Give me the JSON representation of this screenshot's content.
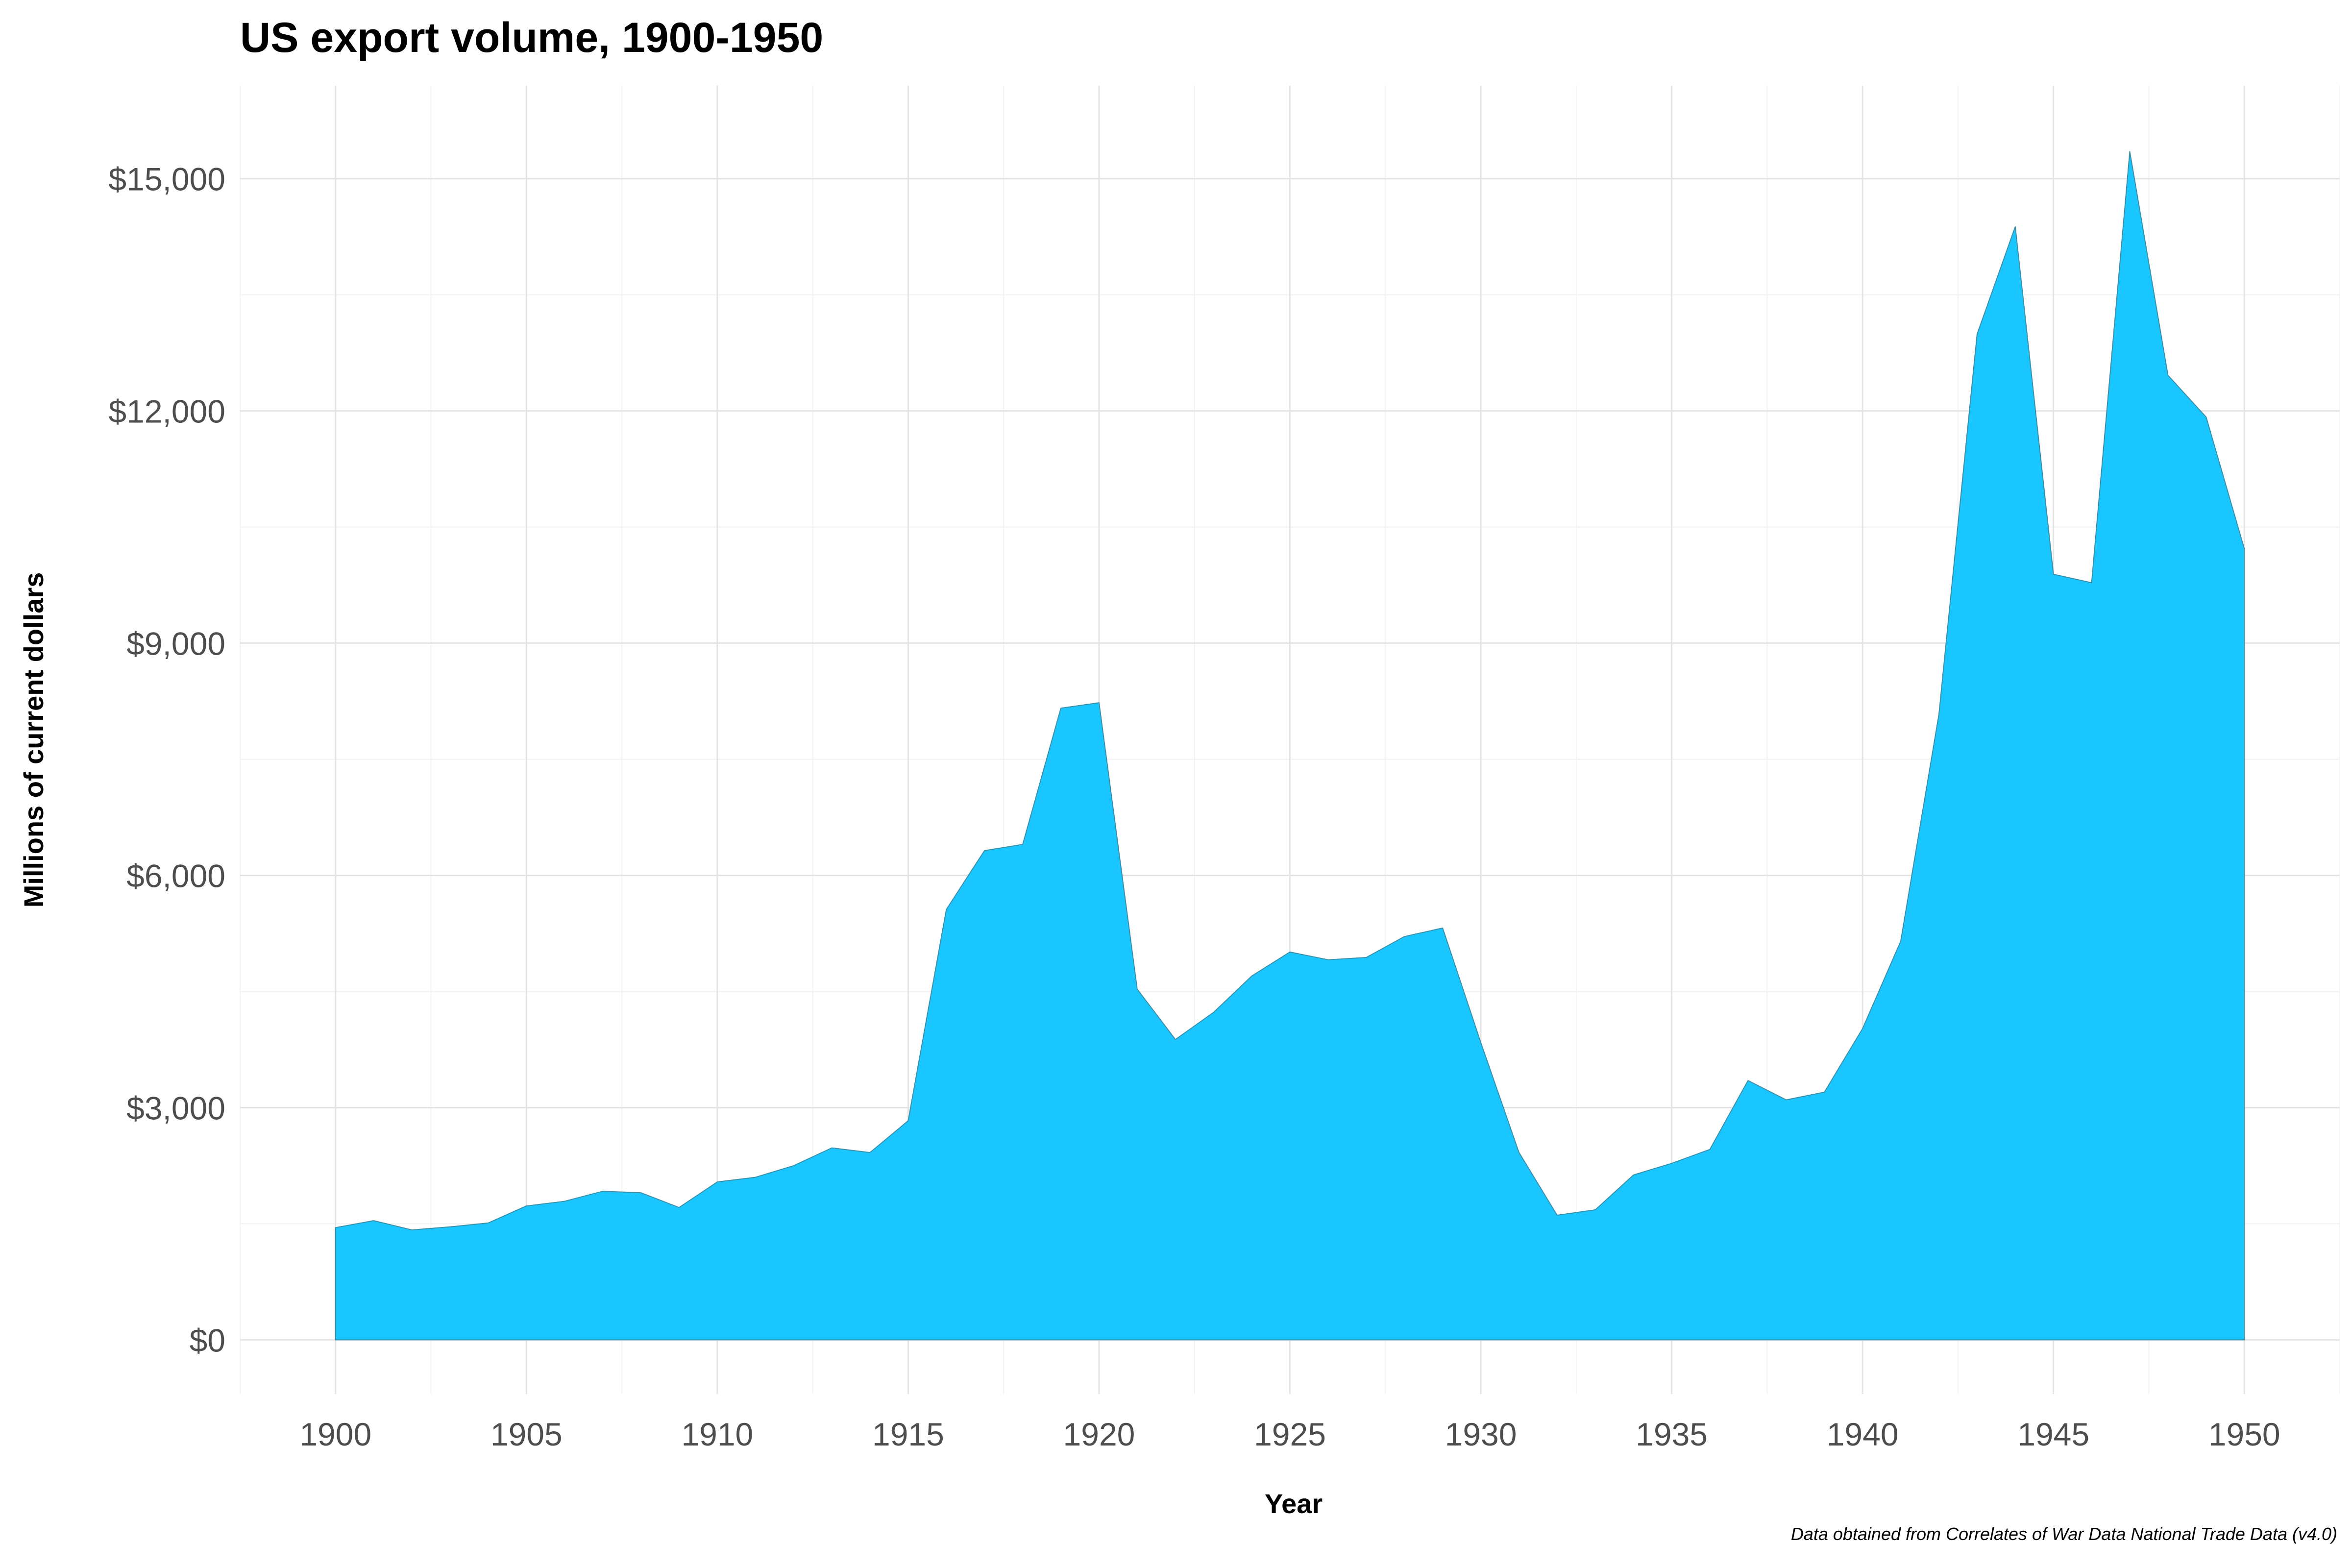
{
  "chart_data": {
    "type": "area",
    "title": "US export volume, 1900-1950",
    "xlabel": "Year",
    "ylabel": "Millions of current dollars",
    "caption": "Data obtained from Correlates of War Data National Trade Data (v4.0)",
    "xlim": [
      1897.5,
      1952.5
    ],
    "ylim": [
      -700,
      16200
    ],
    "x_ticks": [
      1900,
      1905,
      1910,
      1915,
      1920,
      1925,
      1930,
      1935,
      1940,
      1945,
      1950
    ],
    "x_tick_labels": [
      "1900",
      "1905",
      "1910",
      "1915",
      "1920",
      "1925",
      "1930",
      "1935",
      "1940",
      "1945",
      "1950"
    ],
    "y_ticks": [
      0,
      3000,
      6000,
      9000,
      12000,
      15000
    ],
    "y_tick_labels": [
      "$0",
      "$3,000",
      "$6,000",
      "$9,000",
      "$12,000",
      "$15,000"
    ],
    "grid": true,
    "fill_color": "#1AC6FF",
    "stroke_color": "#3A8FA8",
    "x": [
      1900,
      1901,
      1902,
      1903,
      1904,
      1905,
      1906,
      1907,
      1908,
      1909,
      1910,
      1911,
      1912,
      1913,
      1914,
      1915,
      1916,
      1917,
      1918,
      1919,
      1920,
      1921,
      1922,
      1923,
      1924,
      1925,
      1926,
      1927,
      1928,
      1929,
      1930,
      1931,
      1932,
      1933,
      1934,
      1935,
      1936,
      1937,
      1938,
      1939,
      1940,
      1941,
      1942,
      1943,
      1944,
      1945,
      1946,
      1947,
      1948,
      1949,
      1950
    ],
    "values": [
      1450,
      1540,
      1420,
      1460,
      1510,
      1730,
      1790,
      1920,
      1900,
      1710,
      2040,
      2100,
      2250,
      2480,
      2420,
      2830,
      5560,
      6320,
      6400,
      8160,
      8230,
      4530,
      3880,
      4230,
      4700,
      5010,
      4910,
      4940,
      5210,
      5320,
      3840,
      2420,
      1610,
      1680,
      2130,
      2280,
      2460,
      3350,
      3100,
      3200,
      4020,
      5150,
      8080,
      12990,
      14380,
      9890,
      9780,
      15350,
      12460,
      11920,
      10220
    ]
  }
}
